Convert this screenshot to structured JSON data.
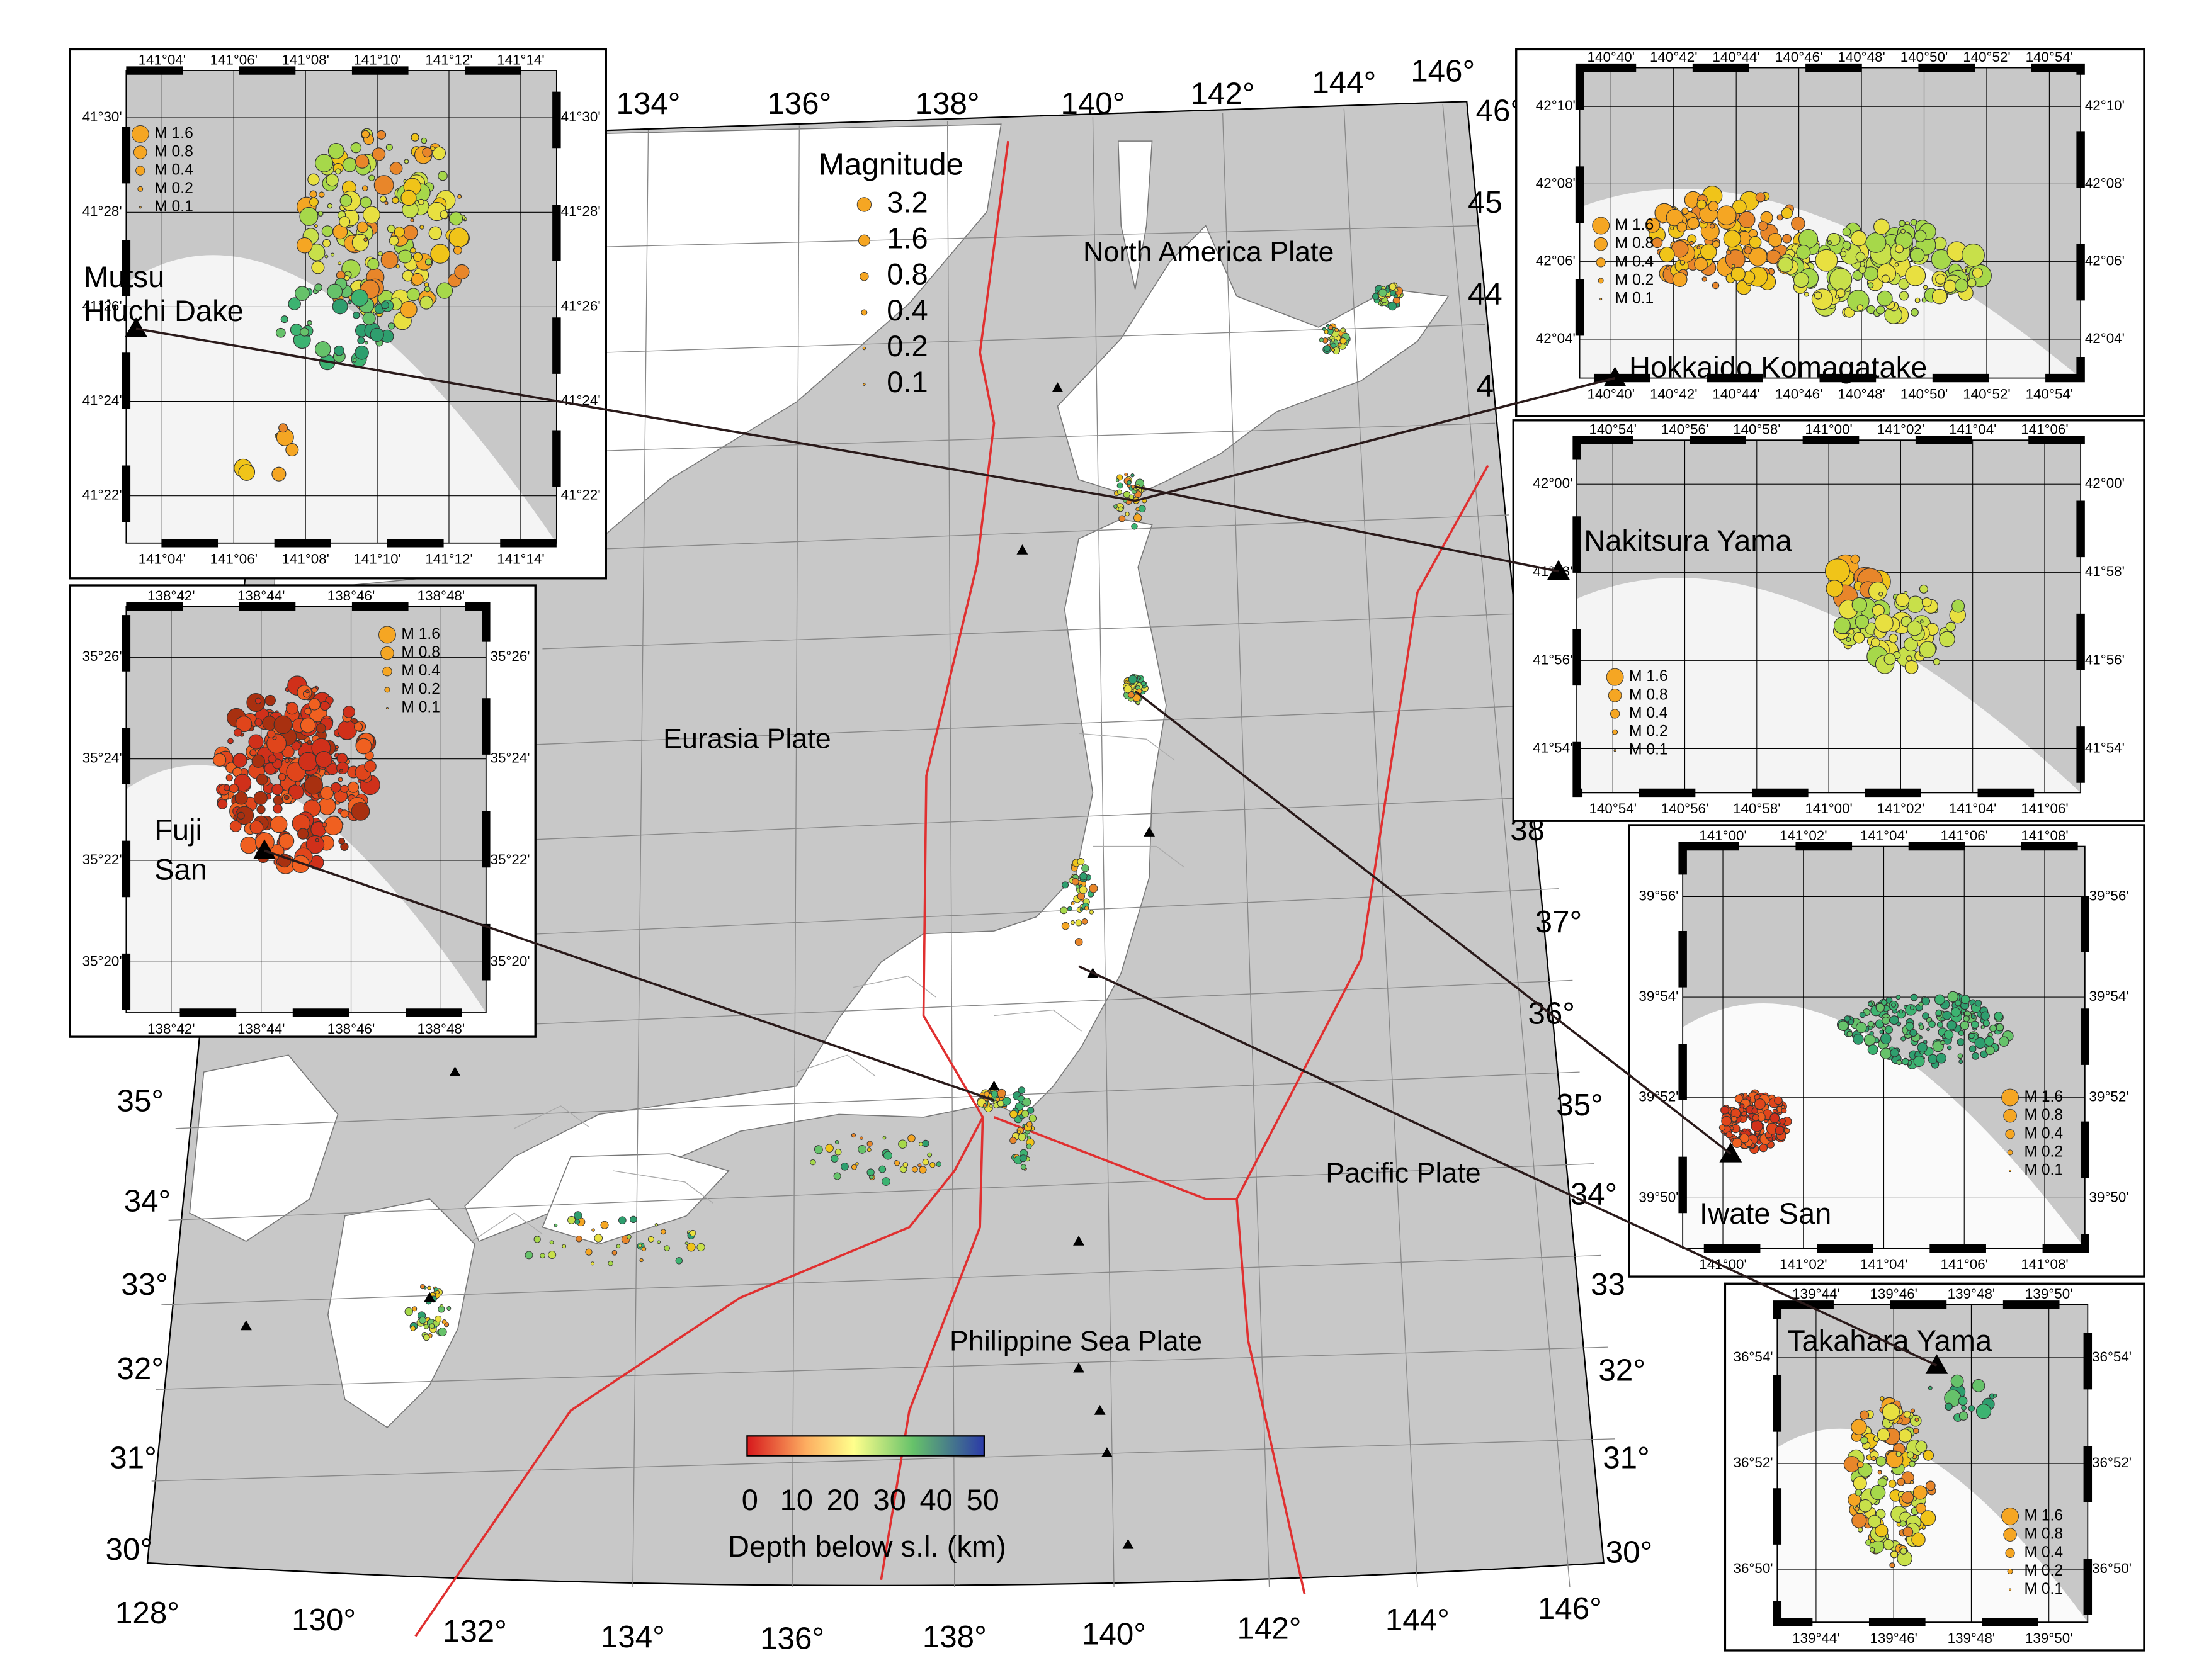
{
  "map": {
    "lon_labels_top": [
      "134°",
      "136°",
      "138°",
      "140°",
      "142°",
      "144°",
      "146°"
    ],
    "lat_labels_right_top": [
      "46°",
      "45",
      "44",
      "4"
    ],
    "lat_labels_right": [
      "38",
      "37°",
      "36°",
      "35°",
      "34°",
      "33",
      "32°",
      "31°",
      "30°"
    ],
    "lat_labels_left": [
      "35°",
      "34°",
      "33°",
      "32°",
      "31°",
      "30°"
    ],
    "lon_labels_bottom": [
      "128°",
      "130°",
      "132°",
      "134°",
      "136°",
      "138°",
      "140°",
      "142°",
      "144°",
      "146°"
    ],
    "plates": [
      "North America Plate",
      "Eurasia Plate",
      "Pacific Plate",
      "Philippine Sea Plate"
    ],
    "magnitude_legend": {
      "title": "Magnitude",
      "labels": [
        "3.2",
        "1.6",
        "0.8",
        "0.4",
        "0.2",
        "0.1"
      ]
    },
    "depth_colorbar": {
      "ticks": [
        "0",
        "10",
        "20",
        "30",
        "40",
        "50"
      ],
      "title": "Depth below s.l. (km)"
    }
  },
  "insets": [
    {
      "name_lines": [
        "Mutsu",
        "Hiuchi Dake"
      ],
      "x_labels": [
        "141°04'",
        "141°06'",
        "141°08'",
        "141°10'",
        "141°12'",
        "141°14'"
      ],
      "y_labels": [
        "41°30'",
        "41°28'",
        "41°26'",
        "41°24'",
        "41°22'"
      ],
      "legend": [
        "M 1.6",
        "M 0.8",
        "M 0.4",
        "M 0.2",
        "M 0.1"
      ]
    },
    {
      "name_lines": [
        "Fuji",
        "San"
      ],
      "x_labels": [
        "138°42'",
        "138°44'",
        "138°46'",
        "138°48'"
      ],
      "y_labels": [
        "35°26'",
        "35°24'",
        "35°22'",
        "35°20'"
      ],
      "legend": [
        "M 1.6",
        "M 0.8",
        "M 0.4",
        "M 0.2",
        "M 0.1"
      ]
    },
    {
      "name_lines": [
        "Hokkaido Komagatake"
      ],
      "x_labels": [
        "140°40'",
        "140°42'",
        "140°44'",
        "140°46'",
        "140°48'",
        "140°50'",
        "140°52'",
        "140°54'"
      ],
      "y_labels": [
        "42°10'",
        "42°08'",
        "42°06'",
        "42°04'"
      ],
      "legend": [
        "M 1.6",
        "M 0.8",
        "M 0.4",
        "M 0.2",
        "M 0.1"
      ]
    },
    {
      "name_lines": [
        "Nakitsura Yama"
      ],
      "x_labels": [
        "140°54'",
        "140°56'",
        "140°58'",
        "141°00'",
        "141°02'",
        "141°04'",
        "141°06'"
      ],
      "y_labels": [
        "42°00'",
        "41°58'",
        "41°56'",
        "41°54'"
      ],
      "legend": [
        "M 1.6",
        "M 0.8",
        "M 0.4",
        "M 0.2",
        "M 0.1"
      ]
    },
    {
      "name_lines": [
        "Iwate San"
      ],
      "x_labels": [
        "141°00'",
        "141°02'",
        "141°04'",
        "141°06'",
        "141°08'"
      ],
      "y_labels": [
        "39°56'",
        "39°54'",
        "39°52'",
        "39°50'"
      ],
      "legend": [
        "M 1.6",
        "M 0.8",
        "M 0.4",
        "M 0.2",
        "M 0.1"
      ]
    },
    {
      "name_lines": [
        "Takahara Yama"
      ],
      "x_labels": [
        "139°44'",
        "139°46'",
        "139°48'",
        "139°50'"
      ],
      "y_labels": [
        "36°54'",
        "36°52'",
        "36°50'"
      ],
      "legend": [
        "M 1.6",
        "M 0.8",
        "M 0.4",
        "M 0.2",
        "M 0.1"
      ]
    }
  ]
}
